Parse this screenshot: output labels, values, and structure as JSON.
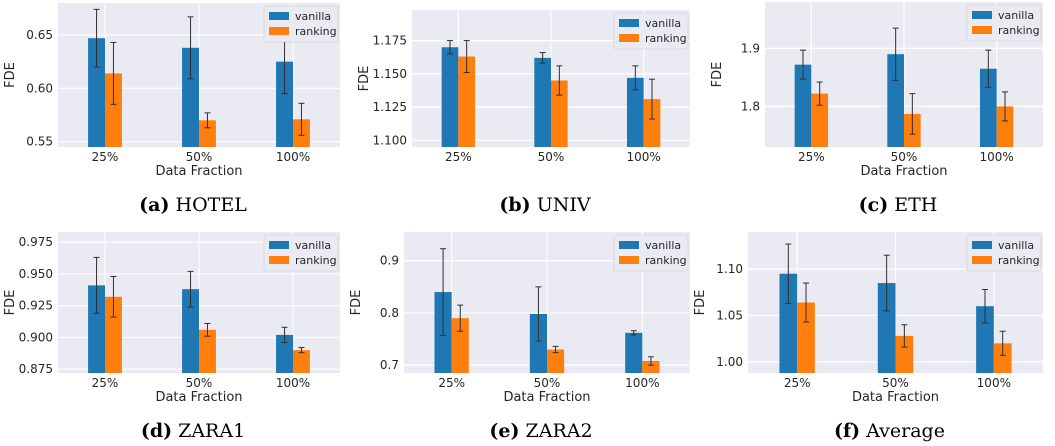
{
  "colors": {
    "vanilla": "#1f77b4",
    "ranking": "#ff7f0e",
    "plot_bg": "#eaeaf2",
    "grid": "#ffffff",
    "errorbar": "#303030"
  },
  "chart_data": [
    {
      "type": "bar",
      "caption_letter": "(a)",
      "caption_name": "HOTEL",
      "categories": [
        "25%",
        "50%",
        "100%"
      ],
      "xlabel": "Data Fraction",
      "ylabel": "FDE",
      "ylim": [
        0.545,
        0.68
      ],
      "yticks": [
        "0.55",
        "0.60",
        "0.65"
      ],
      "legend": "top-right",
      "series": [
        {
          "name": "vanilla",
          "values": [
            0.647,
            0.638,
            0.625
          ],
          "errors": [
            0.027,
            0.029,
            0.03
          ]
        },
        {
          "name": "ranking",
          "values": [
            0.614,
            0.57,
            0.571
          ],
          "errors": [
            0.029,
            0.007,
            0.015
          ]
        }
      ]
    },
    {
      "type": "bar",
      "caption_letter": "(b)",
      "caption_name": "UNIV",
      "categories": [
        "25%",
        "50%",
        "100%"
      ],
      "xlabel": "",
      "ylabel": "FDE",
      "ylim": [
        1.095,
        1.198
      ],
      "yticks": [
        "1.100",
        "1.125",
        "1.150",
        "1.175"
      ],
      "legend": "top-right",
      "series": [
        {
          "name": "vanilla",
          "values": [
            1.17,
            1.162,
            1.147
          ],
          "errors": [
            0.005,
            0.004,
            0.009
          ]
        },
        {
          "name": "ranking",
          "values": [
            1.163,
            1.145,
            1.131
          ],
          "errors": [
            0.012,
            0.011,
            0.015
          ]
        }
      ]
    },
    {
      "type": "bar",
      "caption_letter": "(c)",
      "caption_name": "ETH",
      "categories": [
        "25%",
        "50%",
        "100%"
      ],
      "xlabel": "Data Fraction",
      "ylabel": "FDE",
      "ylim": [
        1.73,
        1.98
      ],
      "yticks": [
        "1.8",
        "1.9"
      ],
      "legend": "top-right",
      "series": [
        {
          "name": "vanilla",
          "values": [
            1.872,
            1.89,
            1.865
          ],
          "errors": [
            0.025,
            0.045,
            0.032
          ]
        },
        {
          "name": "ranking",
          "values": [
            1.822,
            1.787,
            1.8
          ],
          "errors": [
            0.02,
            0.035,
            0.025
          ]
        }
      ]
    },
    {
      "type": "bar",
      "caption_letter": "(d)",
      "caption_name": "ZARA1",
      "categories": [
        "25%",
        "50%",
        "100%"
      ],
      "xlabel": "Data Fraction",
      "ylabel": "FDE",
      "ylim": [
        0.872,
        0.983
      ],
      "yticks": [
        "0.875",
        "0.900",
        "0.925",
        "0.950",
        "0.975"
      ],
      "legend": "top-right",
      "series": [
        {
          "name": "vanilla",
          "values": [
            0.941,
            0.938,
            0.902
          ],
          "errors": [
            0.022,
            0.014,
            0.006
          ]
        },
        {
          "name": "ranking",
          "values": [
            0.932,
            0.906,
            0.89
          ],
          "errors": [
            0.016,
            0.005,
            0.002
          ]
        }
      ]
    },
    {
      "type": "bar",
      "caption_letter": "(e)",
      "caption_name": "ZARA2",
      "categories": [
        "25%",
        "50%",
        "100%"
      ],
      "xlabel": "Data Fraction",
      "ylabel": "FDE",
      "ylim": [
        0.685,
        0.955
      ],
      "yticks": [
        "0.7",
        "0.8",
        "0.9"
      ],
      "legend": "top-right",
      "series": [
        {
          "name": "vanilla",
          "values": [
            0.84,
            0.798,
            0.762
          ],
          "errors": [
            0.083,
            0.052,
            0.004
          ]
        },
        {
          "name": "ranking",
          "values": [
            0.79,
            0.73,
            0.708
          ],
          "errors": [
            0.025,
            0.006,
            0.008
          ]
        }
      ]
    },
    {
      "type": "bar",
      "caption_letter": "(f)",
      "caption_name": "Average",
      "categories": [
        "25%",
        "50%",
        "100%"
      ],
      "xlabel": "Data Fraction",
      "ylabel": "FDE",
      "ylim": [
        0.988,
        1.14
      ],
      "yticks": [
        "1.00",
        "1.05",
        "1.10"
      ],
      "legend": "top-right",
      "series": [
        {
          "name": "vanilla",
          "values": [
            1.095,
            1.085,
            1.06
          ],
          "errors": [
            0.032,
            0.03,
            0.018
          ]
        },
        {
          "name": "ranking",
          "values": [
            1.064,
            1.028,
            1.02
          ],
          "errors": [
            0.021,
            0.012,
            0.013
          ]
        }
      ]
    }
  ]
}
